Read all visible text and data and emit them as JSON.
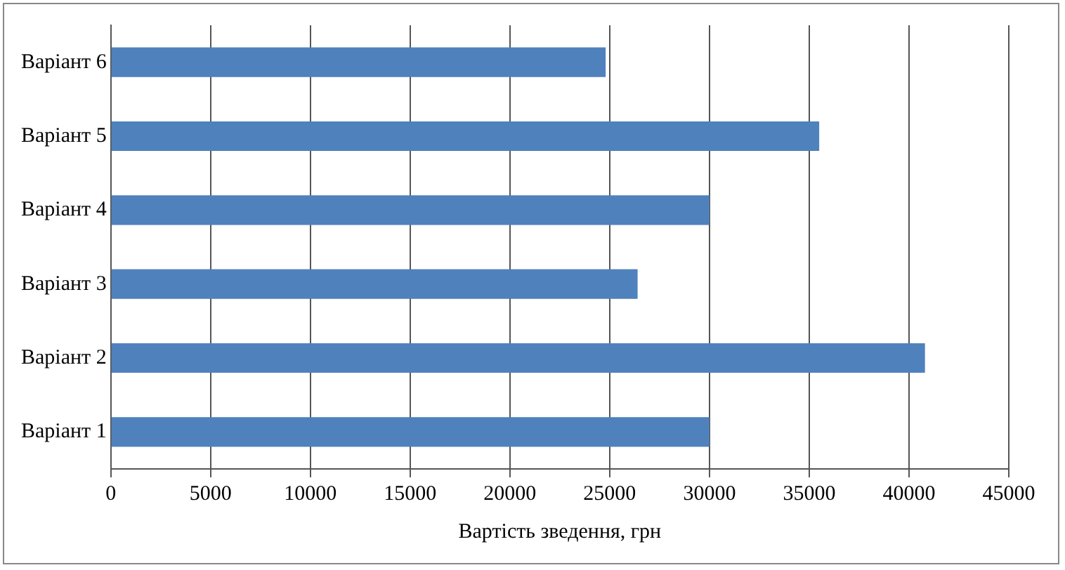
{
  "chart_data": {
    "type": "bar",
    "orientation": "horizontal",
    "xlabel": "Вартість зведення, грн",
    "categories": [
      "Варіант 6",
      "Варіант 5",
      "Варіант 4",
      "Варіант 3",
      "Варіант 2",
      "Варіант 1"
    ],
    "values": [
      24800,
      35500,
      30000,
      26400,
      40800,
      30000
    ],
    "color": "#4f81bd",
    "xlim": [
      0,
      45000
    ],
    "xticks": [
      0,
      5000,
      10000,
      15000,
      20000,
      25000,
      30000,
      35000,
      40000,
      45000
    ],
    "grid": "x",
    "legend": false
  }
}
